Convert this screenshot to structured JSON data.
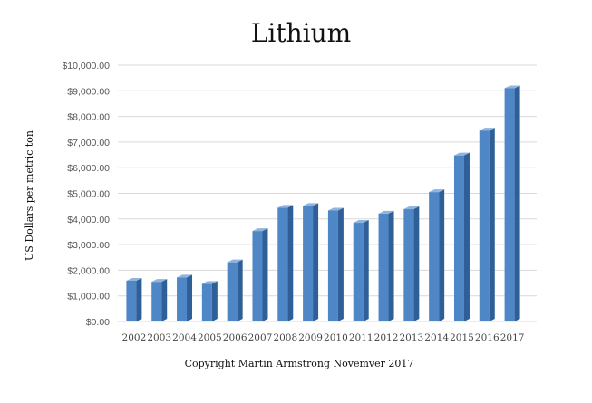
{
  "chart_data": {
    "type": "bar",
    "title": "Lithium",
    "ylabel": "US Dollars per metric ton",
    "caption": "Copyright Martin Armstrong Novemver 2017",
    "categories": [
      "2002",
      "2003",
      "2004",
      "2005",
      "2006",
      "2007",
      "2008",
      "2009",
      "2010",
      "2011",
      "2012",
      "2013",
      "2014",
      "2015",
      "2016",
      "2017"
    ],
    "values": [
      1590,
      1550,
      1720,
      1470,
      2310,
      3530,
      4440,
      4510,
      4330,
      3850,
      4210,
      4380,
      5050,
      6480,
      7450,
      9100
    ],
    "ylim": [
      0,
      10000
    ],
    "yticks": [
      "$0.00",
      "$1,000.00",
      "$2,000.00",
      "$3,000.00",
      "$4,000.00",
      "$5,000.00",
      "$6,000.00",
      "$7,000.00",
      "$8,000.00",
      "$9,000.00",
      "$10,000.00"
    ],
    "grid": true,
    "legend": "none",
    "colors": {
      "bar_front": "#4f86c6",
      "bar_side": "#2e5f96",
      "bar_top": "#8fb4e0"
    }
  }
}
